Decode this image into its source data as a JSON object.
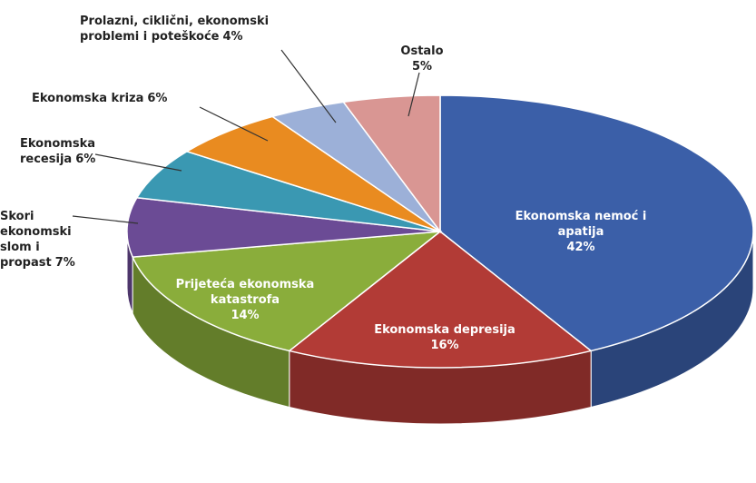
{
  "chart_data": {
    "type": "pie",
    "categories": [
      "Ekonomska nemoć i apatija",
      "Ekonomska depresija",
      "Prijeteća ekonomska katastrofa",
      "Skori ekonomski slom i propast",
      "Ekonomska recesija",
      "Ekonomska kriza",
      "Prolazni, ciklični, ekonomski problemi i poteškoće",
      "Ostalo"
    ],
    "values": [
      42,
      16,
      14,
      7,
      6,
      6,
      4,
      5
    ],
    "value_labels": [
      "42%",
      "16%",
      "14%",
      "7%",
      "6%",
      "6%",
      "4%",
      "5%"
    ],
    "colors": [
      "#3b5fa8",
      "#b23b36",
      "#8aad3b",
      "#6b4b95",
      "#3a98b2",
      "#e98b20",
      "#9cb0d8",
      "#d99693"
    ]
  }
}
